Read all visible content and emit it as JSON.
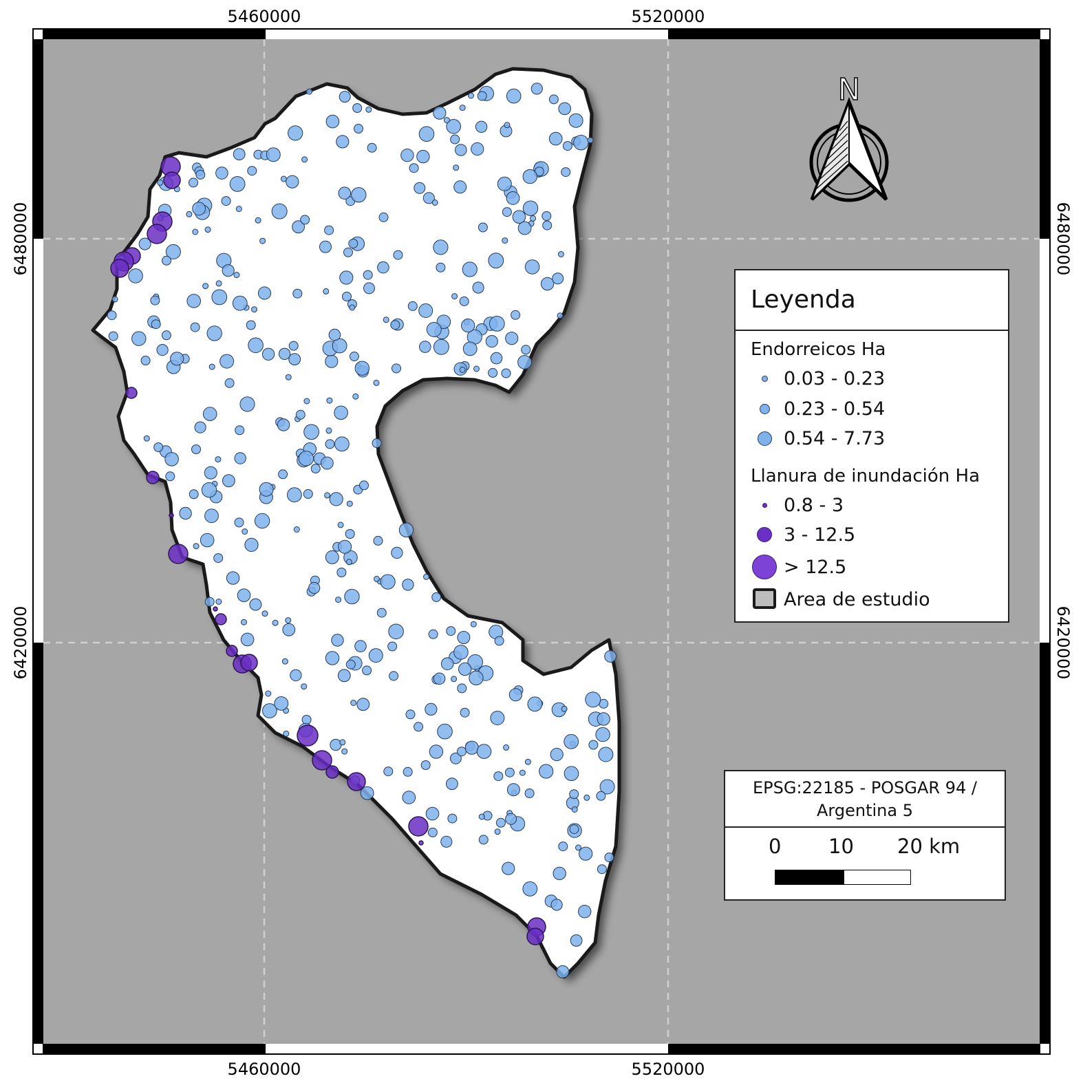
{
  "map": {
    "background_color": "#a6a6a6",
    "study_area_fill": "#ffffff",
    "endorreico_color": "#7fb2ec",
    "llanura_color": "#6a2fc4",
    "grid_x_labels_top": [
      "5460000",
      "5520000"
    ],
    "grid_x_labels_bottom": [
      "5460000",
      "5520000"
    ],
    "grid_y_labels_left": [
      "6480000",
      "6420000"
    ],
    "grid_y_labels_right": [
      "6480000",
      "6420000"
    ],
    "north_arrow_label": "N"
  },
  "legend": {
    "title": "Leyenda",
    "group1_title": "Endorreicos Ha",
    "group1_items": [
      "0.03 - 0.23",
      "0.23 - 0.54",
      "0.54 - 7.73"
    ],
    "group2_title": "Llanura de inundación Ha",
    "group2_items": [
      "0.8 - 3",
      "3 - 12.5",
      "> 12.5"
    ],
    "area_label": "Area de estudio"
  },
  "scale": {
    "crs": "EPSG:22185 - POSGAR 94 / Argentina 5",
    "labels": [
      "0",
      "10",
      "20 km"
    ]
  }
}
